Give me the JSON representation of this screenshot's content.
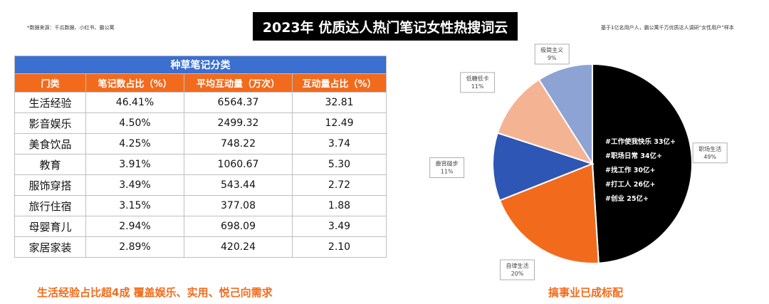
{
  "header": {
    "source_note": "*数据来源：千瓜数据、小红书、霸公寓",
    "title": "2023年 优质达人热门笔记女性热搜词云",
    "sample_note": "基于1亿名用户人，霸公寓千万优质达人调研“女性用户”样本"
  },
  "table": {
    "category_header": "种草笔记分类",
    "columns": [
      "门类",
      "笔记数占比（%）",
      "平均互动量（万次）",
      "互动量占比（%）"
    ],
    "rows": [
      [
        "生活经验",
        "46.41%",
        "6564.37",
        "32.81"
      ],
      [
        "影音娱乐",
        "4.50%",
        "2499.32",
        "12.49"
      ],
      [
        "美食饮品",
        "4.25%",
        "748.22",
        "3.74"
      ],
      [
        "教育",
        "3.91%",
        "1060.67",
        "5.30"
      ],
      [
        "服饰穿搭",
        "3.49%",
        "543.44",
        "2.72"
      ],
      [
        "旅行住宿",
        "3.15%",
        "377.08",
        "1.88"
      ],
      [
        "母婴育儿",
        "2.94%",
        "698.09",
        "3.49"
      ],
      [
        "家居家装",
        "2.89%",
        "420.24",
        "2.10"
      ]
    ]
  },
  "footer": {
    "left": "生活经验占比超4成  覆盖娱乐、实用、悦己向需求",
    "right": "搞事业已成标配"
  },
  "chart_data": [
    {
      "type": "table",
      "title": "种草笔记分类",
      "columns": [
        "门类",
        "笔记数占比（%）",
        "平均互动量（万次）",
        "互动量占比（%）"
      ],
      "categories": [
        "生活经验",
        "影音娱乐",
        "美食饮品",
        "教育",
        "服饰穿搭",
        "旅行住宿",
        "母婴育儿",
        "家居家装"
      ],
      "series": [
        {
          "name": "笔记数占比（%）",
          "values": [
            46.41,
            4.5,
            4.25,
            3.91,
            3.49,
            3.15,
            2.94,
            2.89
          ]
        },
        {
          "name": "平均互动量（万次）",
          "values": [
            6564.37,
            2499.32,
            748.22,
            1060.67,
            543.44,
            377.08,
            698.09,
            420.24
          ]
        },
        {
          "name": "互动量占比（%）",
          "values": [
            32.81,
            12.49,
            3.74,
            5.3,
            2.72,
            1.88,
            3.49,
            2.1
          ]
        }
      ]
    },
    {
      "type": "pie",
      "slices": [
        {
          "label": "职场生活",
          "pct_label": "49%",
          "value": 49,
          "color": "#000000"
        },
        {
          "label": "自律生活",
          "pct_label": "20%",
          "value": 20,
          "color": "#f26b1d"
        },
        {
          "label": "鹿宫碰步",
          "pct_label": "11%",
          "value": 11,
          "color": "#2e56b4"
        },
        {
          "label": "低糖低卡",
          "pct_label": "11%",
          "value": 11,
          "color": "#f4b494"
        },
        {
          "label": "极简主义",
          "pct_label": "9%",
          "value": 9,
          "color": "#8ca3d4"
        }
      ],
      "annotations": [
        "#工作使我快乐 33亿+",
        "#职场日常 34亿+",
        "#找工作 30亿+",
        "#打工人 26亿+",
        "#创业 25亿+"
      ]
    }
  ]
}
